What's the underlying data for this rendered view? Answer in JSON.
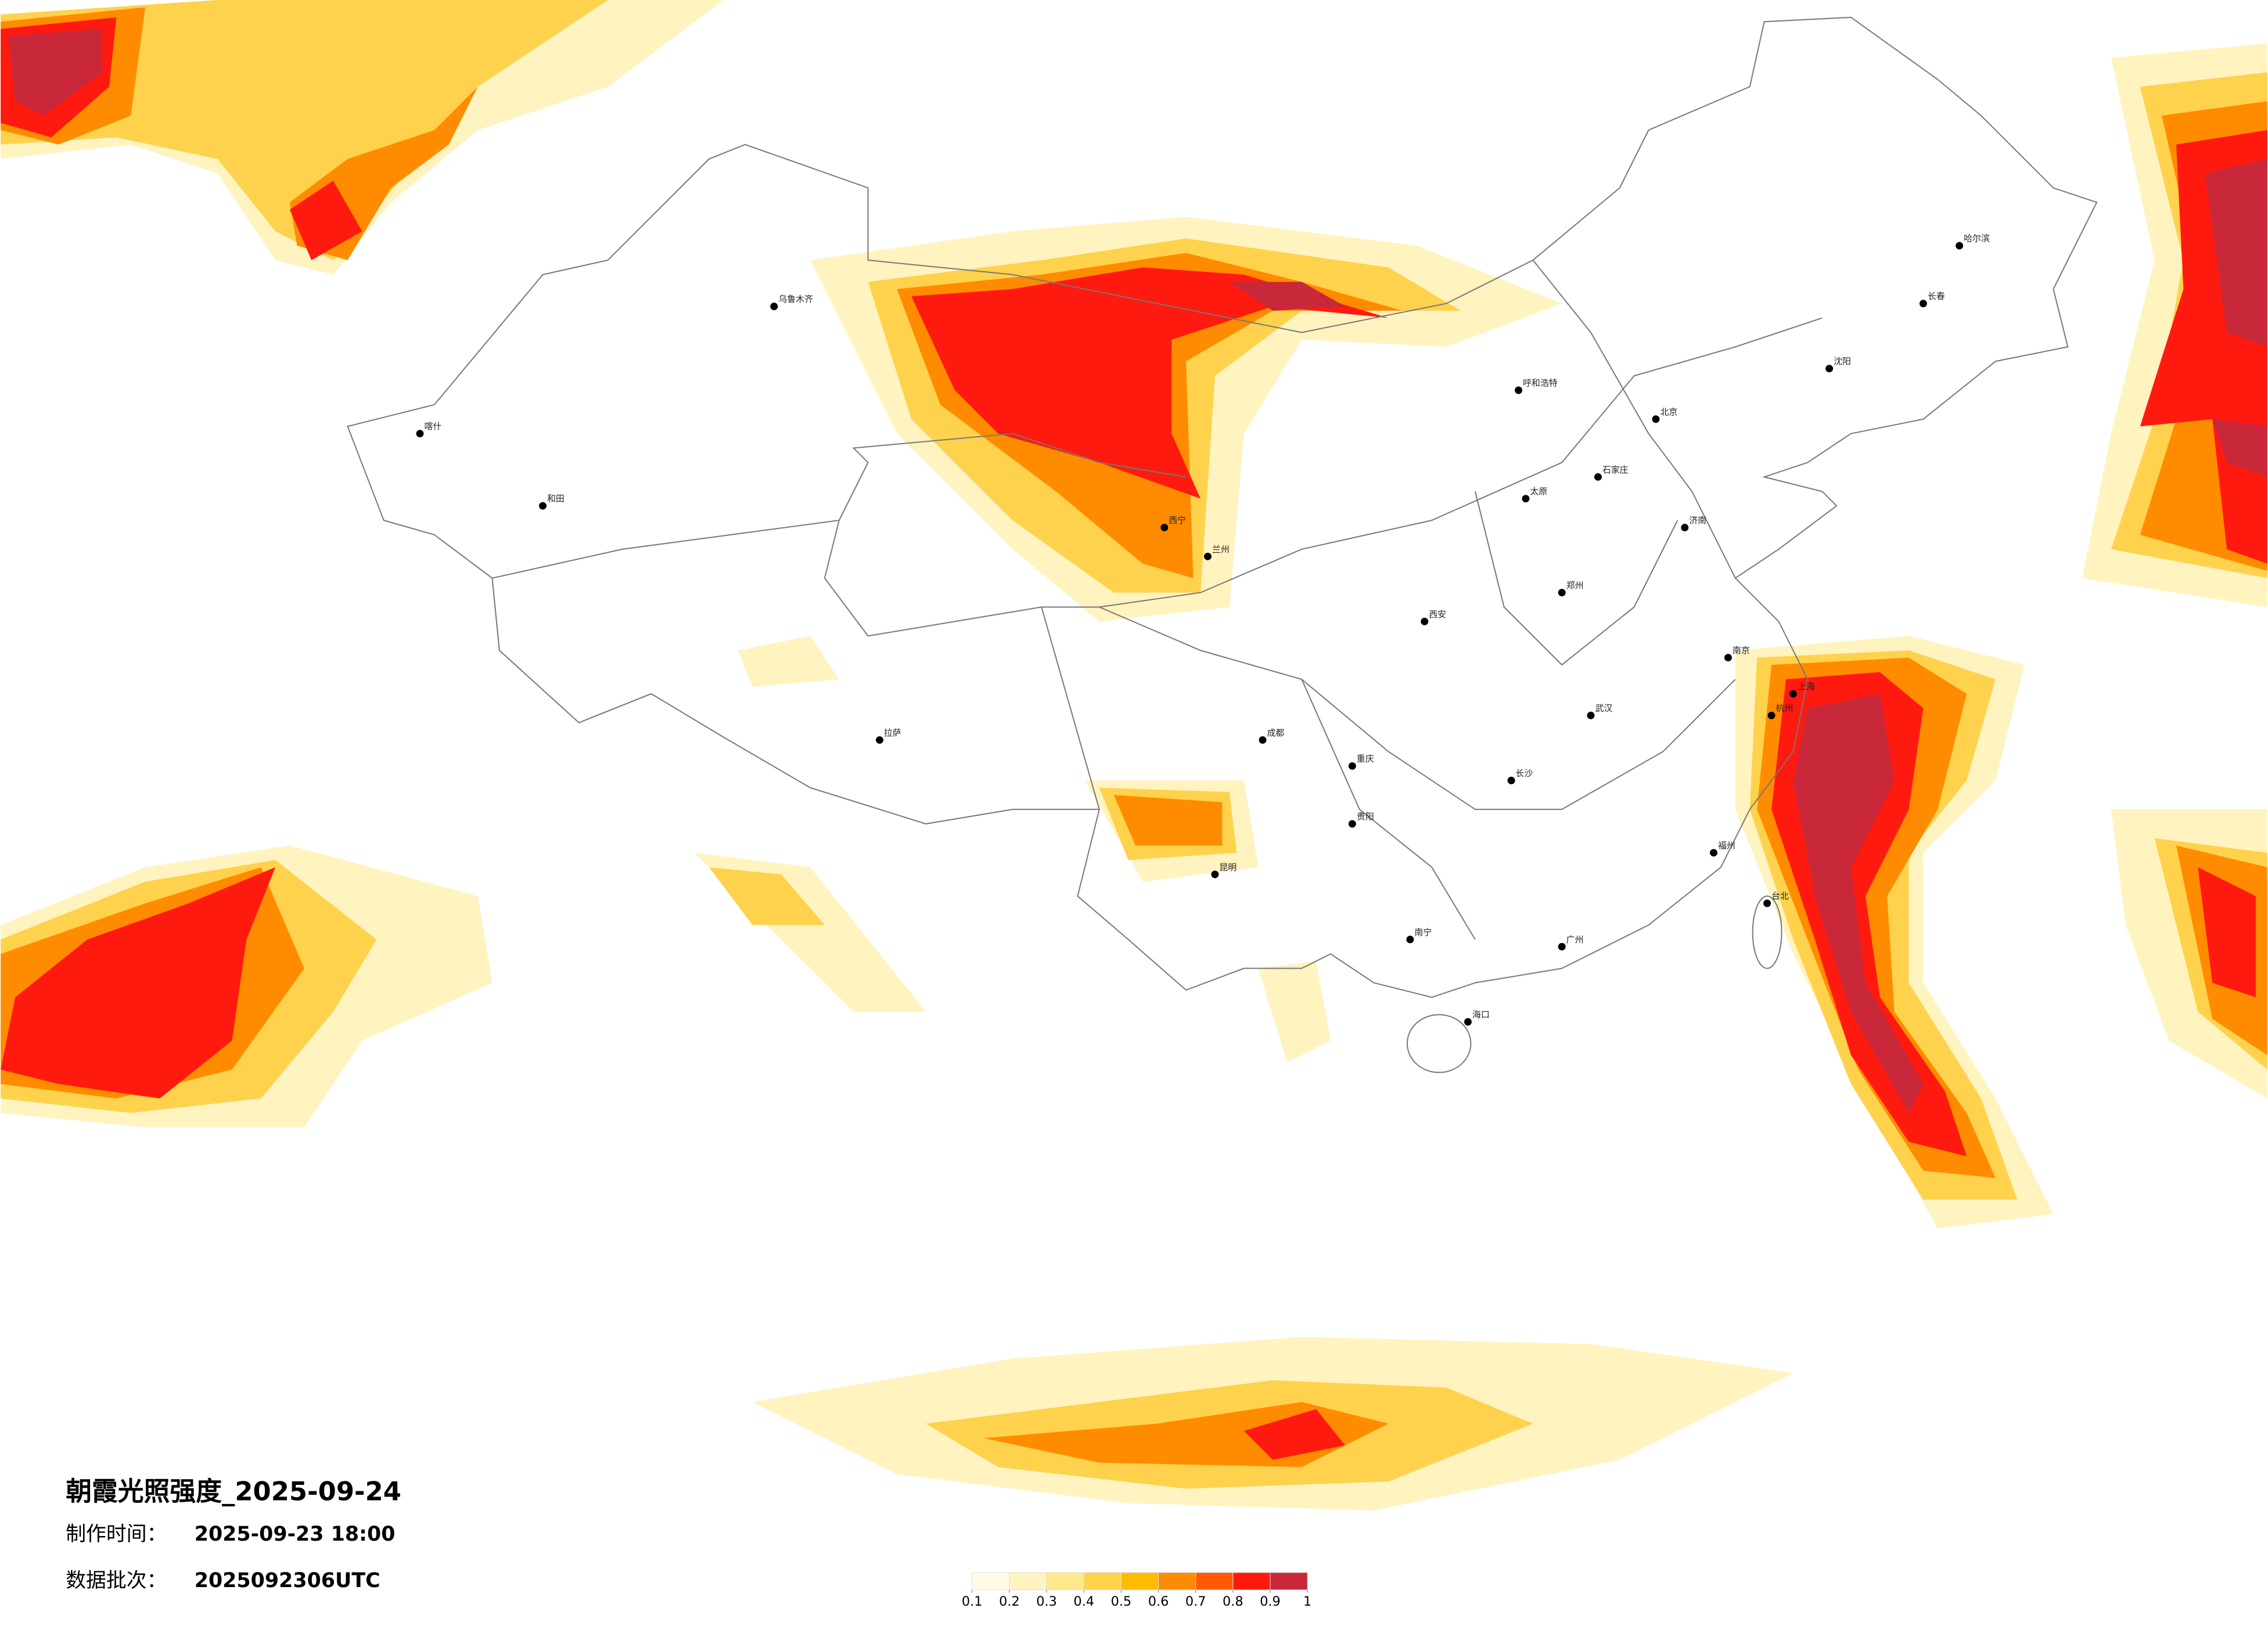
{
  "title": "朝霞光照强度_2025-09-24",
  "production_label": "制作时间：",
  "production_time": "2025-09-23 18:00",
  "batch_label": "数据批次：",
  "batch": "2025092306UTC",
  "legend": {
    "ticks": [
      0.1,
      0.2,
      0.3,
      0.4,
      0.5,
      0.6,
      0.7,
      0.8,
      0.9,
      1
    ],
    "colors": [
      "#fffbe6",
      "#fff3bf",
      "#ffe98a",
      "#ffd24d",
      "#ffbb00",
      "#ff8c00",
      "#ff5a00",
      "#ff1a10",
      "#c8283a"
    ]
  },
  "cities": [
    "乌鲁木齐",
    "喀什",
    "和田",
    "拉萨",
    "西宁",
    "兰州",
    "成都",
    "重庆",
    "昆明",
    "贵阳",
    "北京",
    "上海",
    "广州",
    "哈尔滨",
    "长春",
    "沈阳",
    "武汉",
    "西安",
    "郑州",
    "长沙",
    "南宁",
    "海口",
    "台北",
    "福州",
    "呼和浩特",
    "杭州",
    "南京",
    "济南",
    "太原",
    "石家庄"
  ]
}
